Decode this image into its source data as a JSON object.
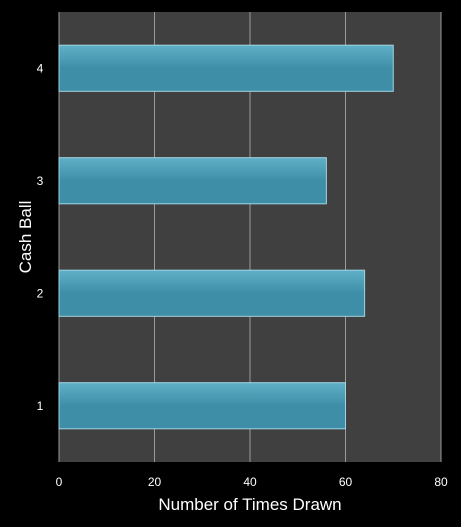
{
  "chart_data": {
    "type": "bar",
    "orientation": "horizontal",
    "categories": [
      "1",
      "2",
      "3",
      "4"
    ],
    "values": [
      60,
      64,
      56,
      70
    ],
    "xlabel": "Number of Times Drawn",
    "ylabel": "Cash Ball",
    "xlim": [
      0,
      80
    ],
    "xticks": [
      0,
      20,
      40,
      60,
      80
    ],
    "grid": true,
    "legend": "none",
    "colors": {
      "background": "#000000",
      "plot_area": "#404040",
      "bar": "#3e8ea7",
      "bar_top": "#5fb0c7",
      "bar_edge": "#9fd4e3",
      "grid": "#9a9a9a",
      "text": "#ffffff"
    }
  }
}
